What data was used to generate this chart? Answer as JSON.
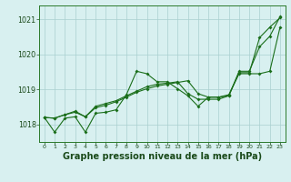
{
  "background_color": "#d8f0f0",
  "grid_color": "#aacfcf",
  "line_color": "#1a6e1a",
  "xlabel": "Graphe pression niveau de la mer (hPa)",
  "xlabel_fontsize": 7.0,
  "ylim": [
    1017.5,
    1021.4
  ],
  "xlim": [
    -0.5,
    23.5
  ],
  "yticks": [
    1018,
    1019,
    1020,
    1021
  ],
  "xticks": [
    0,
    1,
    2,
    3,
    4,
    5,
    6,
    7,
    8,
    9,
    10,
    11,
    12,
    13,
    14,
    15,
    16,
    17,
    18,
    19,
    20,
    21,
    22,
    23
  ],
  "series": [
    [
      1018.2,
      1017.78,
      1018.18,
      1018.22,
      1017.78,
      1018.32,
      1018.35,
      1018.42,
      1018.85,
      1019.52,
      1019.45,
      1019.22,
      1019.22,
      1019.02,
      1018.82,
      1018.52,
      1018.78,
      1018.78,
      1018.82,
      1019.52,
      1019.52,
      1020.22,
      1020.52,
      1021.08
    ],
    [
      1018.2,
      1018.18,
      1018.28,
      1018.35,
      1018.22,
      1018.48,
      1018.55,
      1018.65,
      1018.78,
      1018.92,
      1019.02,
      1019.1,
      1019.15,
      1019.2,
      1019.25,
      1018.88,
      1018.78,
      1018.78,
      1018.85,
      1019.45,
      1019.45,
      1019.45,
      1019.52,
      1020.78
    ],
    [
      1018.2,
      1018.18,
      1018.28,
      1018.38,
      1018.22,
      1018.52,
      1018.6,
      1018.68,
      1018.82,
      1018.95,
      1019.08,
      1019.15,
      1019.18,
      1019.22,
      1018.88,
      1018.72,
      1018.72,
      1018.72,
      1018.82,
      1019.48,
      1019.48,
      1020.48,
      1020.78,
      1021.05
    ]
  ]
}
